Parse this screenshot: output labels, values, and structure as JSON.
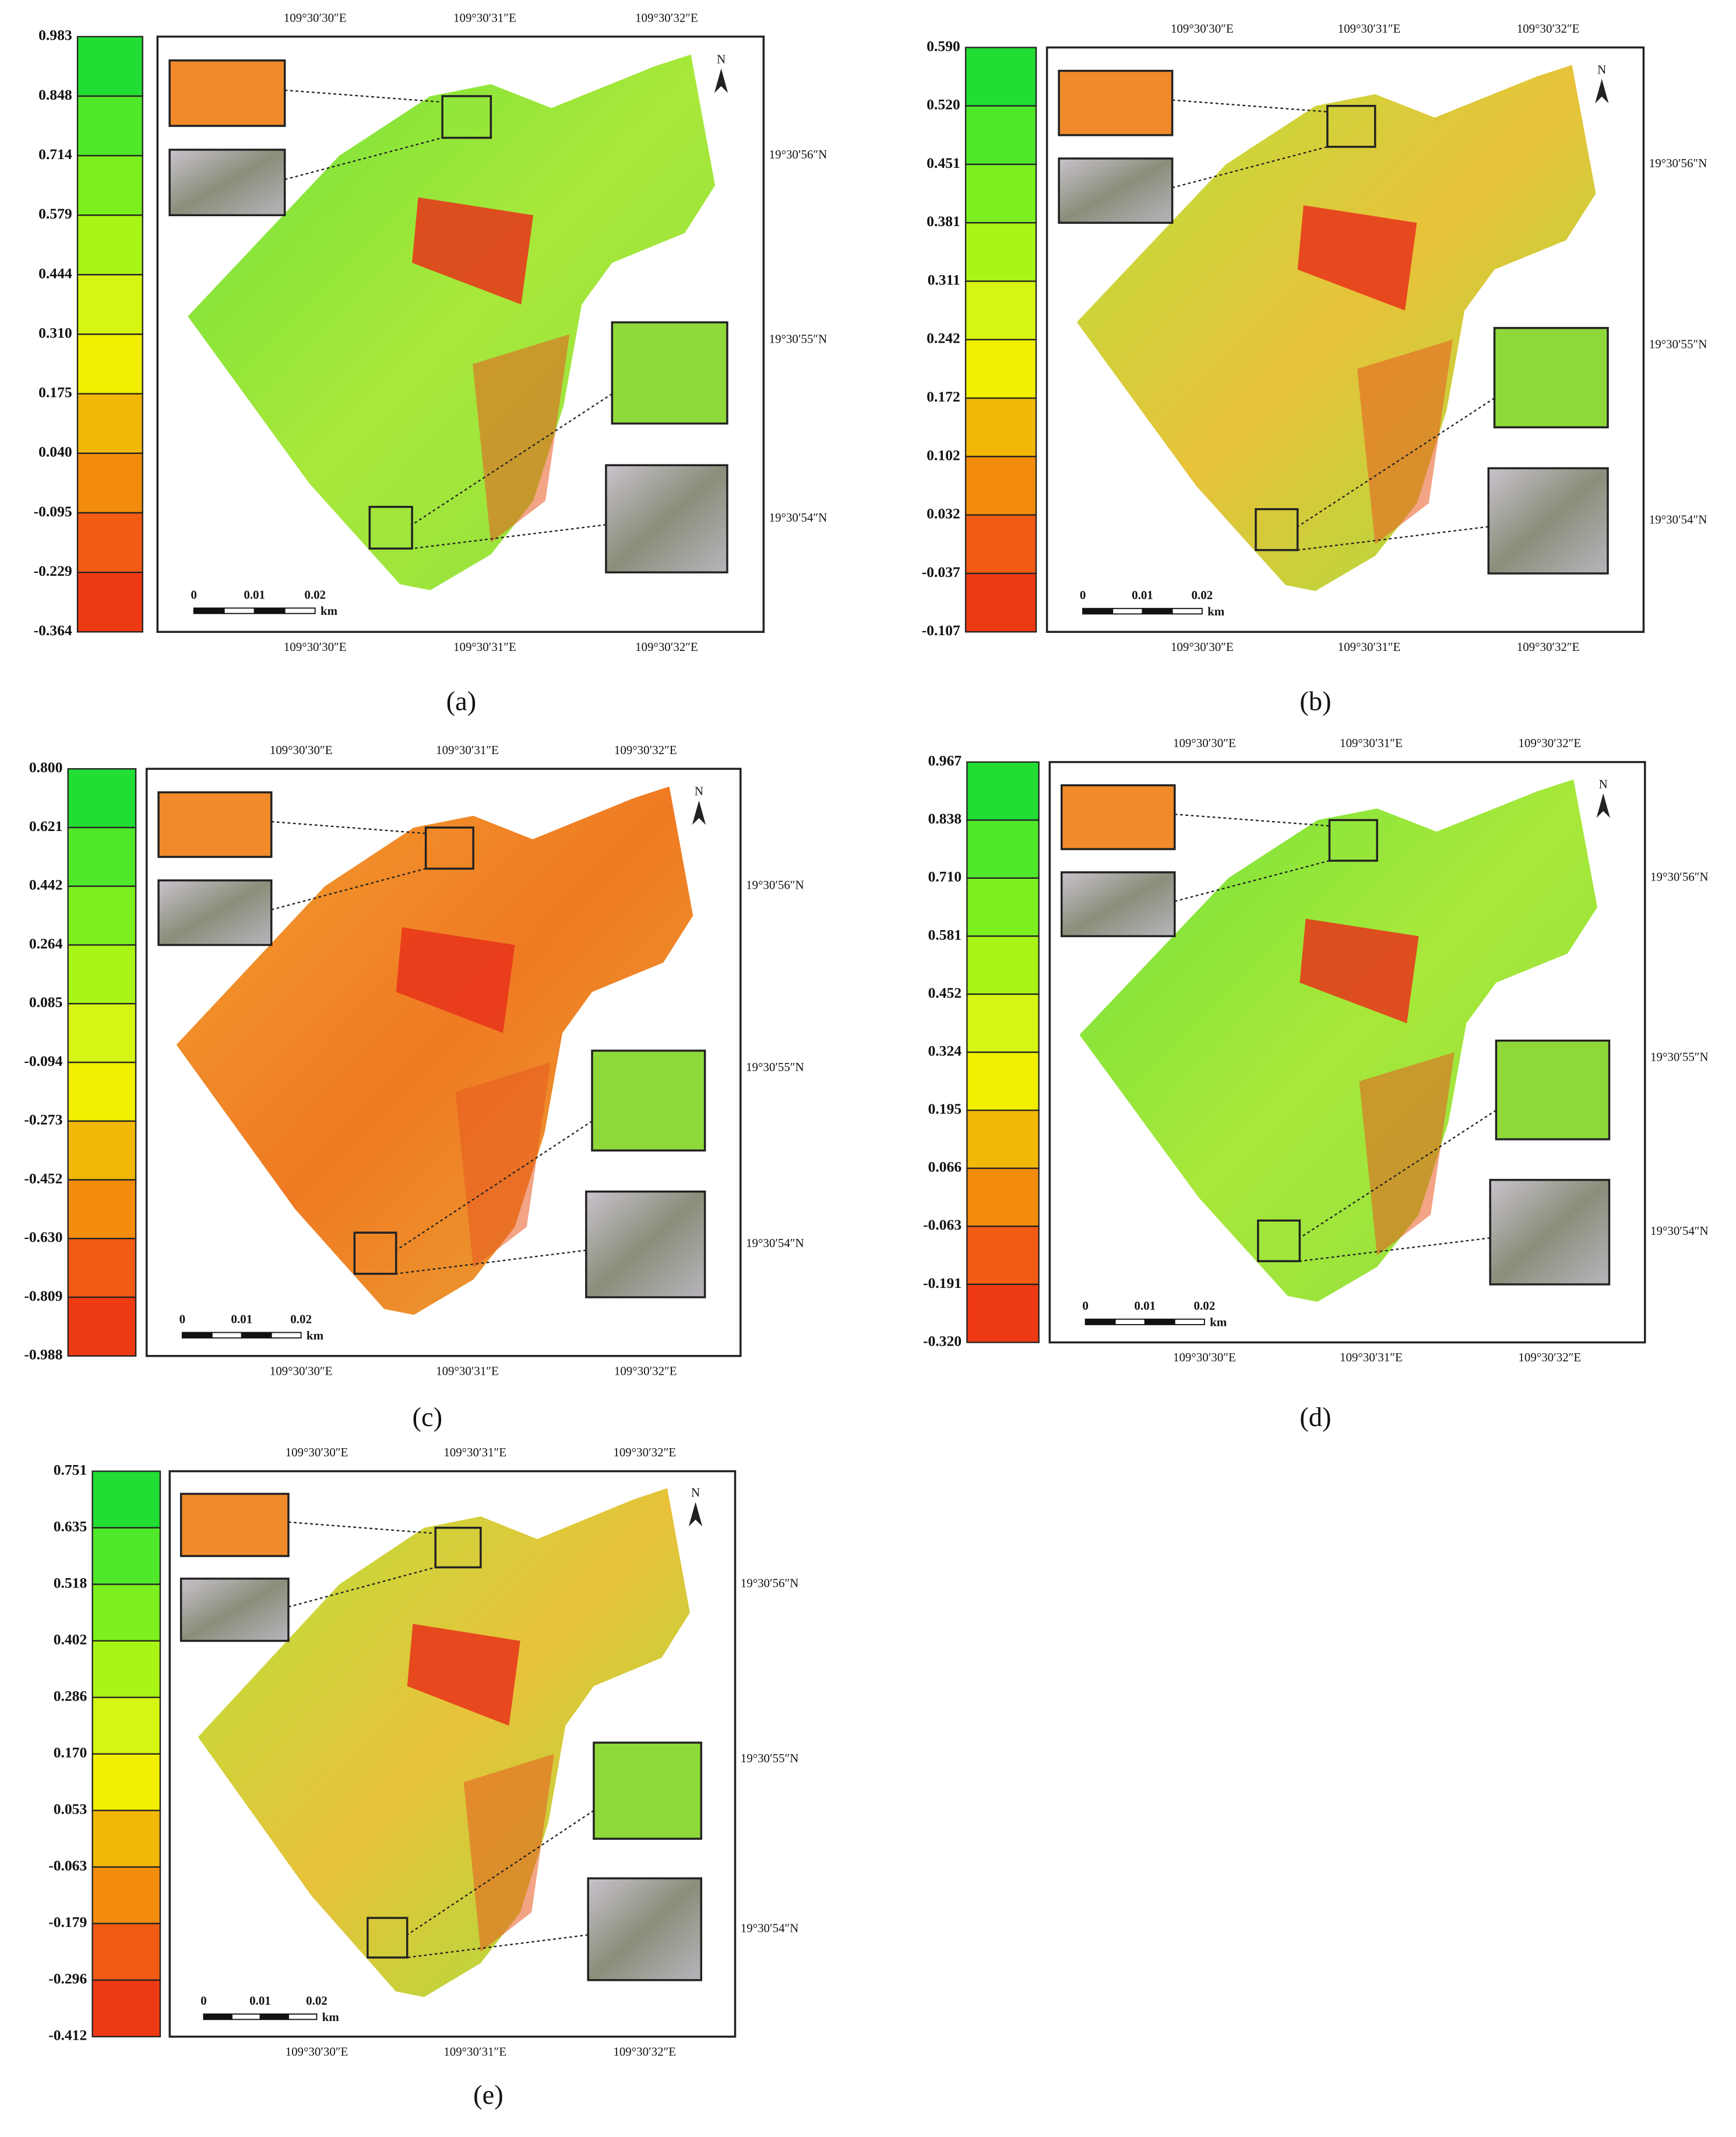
{
  "panels": [
    {
      "label": "(a)",
      "legend": [
        "0.983",
        "0.848",
        "0.714",
        "0.579",
        "0.444",
        "0.310",
        "0.175",
        "0.040",
        "-0.095",
        "-0.229",
        "-0.364"
      ],
      "lon_top": [
        "109°30′30″E",
        "109°30′31″E",
        "109°30′32″E"
      ],
      "lon_bottom": [
        "109°30′30″E",
        "109°30′31″E",
        "109°30′32″E"
      ],
      "lat": [
        "19°30′56″N",
        "19°30′55″N",
        "19°30′54″N"
      ],
      "north": "N",
      "scale": [
        "0",
        "0.01",
        "0.02"
      ],
      "scale_unit": "km"
    },
    {
      "label": "(b)",
      "legend": [
        "0.590",
        "0.520",
        "0.451",
        "0.381",
        "0.311",
        "0.242",
        "0.172",
        "0.102",
        "0.032",
        "-0.037",
        "-0.107"
      ],
      "lon_top": [
        "109°30′30″E",
        "109°30′31″E",
        "109°30′32″E"
      ],
      "lon_bottom": [
        "109°30′30″E",
        "109°30′31″E",
        "109°30′32″E"
      ],
      "lat": [
        "19°30′56″N",
        "19°30′55″N",
        "19°30′54″N"
      ],
      "north": "N",
      "scale": [
        "0",
        "0.01",
        "0.02"
      ],
      "scale_unit": "km"
    },
    {
      "label": "(c)",
      "legend": [
        "0.800",
        "0.621",
        "0.442",
        "0.264",
        "0.085",
        "-0.094",
        "-0.273",
        "-0.452",
        "-0.630",
        "-0.809",
        "-0.988"
      ],
      "lon_top": [
        "109°30′30″E",
        "109°30′31″E",
        "109°30′32″E"
      ],
      "lon_bottom": [
        "109°30′30″E",
        "109°30′31″E",
        "109°30′32″E"
      ],
      "lat": [
        "19°30′56″N",
        "19°30′55″N",
        "19°30′54″N"
      ],
      "north": "N",
      "scale": [
        "0",
        "0.01",
        "0.02"
      ],
      "scale_unit": "km"
    },
    {
      "label": "(d)",
      "legend": [
        "0.967",
        "0.838",
        "0.710",
        "0.581",
        "0.452",
        "0.324",
        "0.195",
        "0.066",
        "-0.063",
        "-0.191",
        "-0.320"
      ],
      "lon_top": [
        "109°30′30″E",
        "109°30′31″E",
        "109°30′32″E"
      ],
      "lon_bottom": [
        "109°30′30″E",
        "109°30′31″E",
        "109°30′32″E"
      ],
      "lat": [
        "19°30′56″N",
        "19°30′55″N",
        "19°30′54″N"
      ],
      "north": "N",
      "scale": [
        "0",
        "0.01",
        "0.02"
      ],
      "scale_unit": "km"
    },
    {
      "label": "(e)",
      "legend": [
        "0.751",
        "0.635",
        "0.518",
        "0.402",
        "0.286",
        "0.170",
        "0.053",
        "-0.063",
        "-0.179",
        "-0.296",
        "-0.412"
      ],
      "lon_top": [
        "109°30′30″E",
        "109°30′31″E",
        "109°30′32″E"
      ],
      "lon_bottom": [
        "109°30′30″E",
        "109°30′31″E",
        "109°30′32″E"
      ],
      "lat": [
        "19°30′56″N",
        "19°30′55″N",
        "19°30′54″N"
      ],
      "north": "N",
      "scale": [
        "0",
        "0.01",
        "0.02"
      ],
      "scale_unit": "km"
    }
  ]
}
